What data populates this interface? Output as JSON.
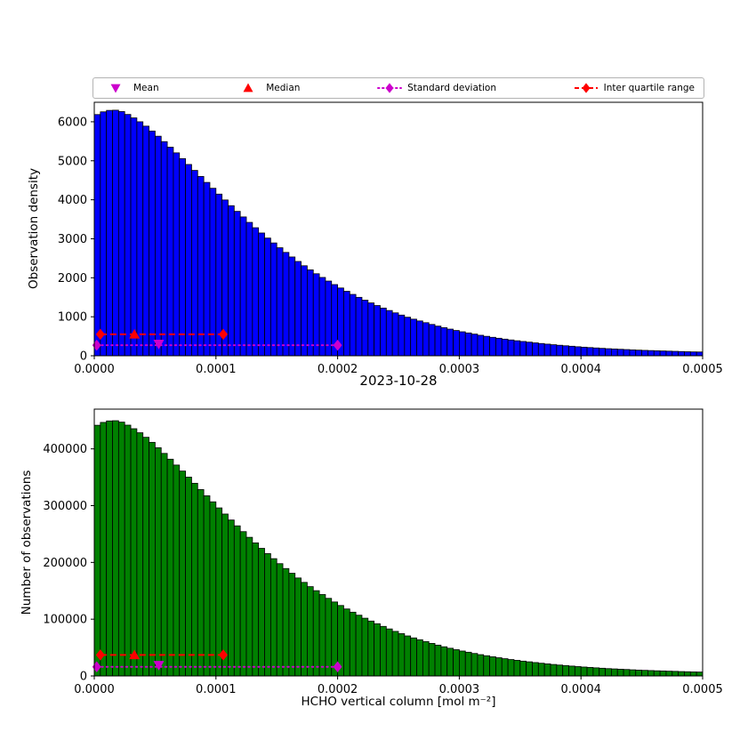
{
  "figure": {
    "title": "2023-10-28",
    "xlabel": "HCHO vertical column [mol m⁻²]",
    "background": "#ffffff"
  },
  "colors": {
    "blue": "#0000ff",
    "green": "#008000",
    "red": "#ff0000",
    "magenta": "#cc00cc",
    "axis": "#000000"
  },
  "legend": {
    "items": [
      {
        "label": "Mean",
        "marker": "triangle-down",
        "color": "#cc00cc",
        "linestyle": "none"
      },
      {
        "label": "Median",
        "marker": "triangle-up",
        "color": "#ff0000",
        "linestyle": "none"
      },
      {
        "label": "Standard deviation",
        "marker": "diamond",
        "color": "#cc00cc",
        "linestyle": "dotted"
      },
      {
        "label": "Inter quartile range",
        "marker": "diamond",
        "color": "#ff0000",
        "linestyle": "dashed"
      }
    ]
  },
  "chart_data": [
    {
      "type": "bar",
      "name": "observation-density-histogram",
      "ylabel": "Observation density",
      "bar_color": "#0000ff",
      "xlim": [
        0,
        0.0005
      ],
      "ylim": [
        0,
        6500
      ],
      "xticks": [
        0,
        0.0001,
        0.0002,
        0.0003,
        0.0004,
        0.0005
      ],
      "xtick_labels": [
        "0.0000",
        "0.0001",
        "0.0002",
        "0.0003",
        "0.0004",
        "0.0005"
      ],
      "yticks": [
        0,
        1000,
        2000,
        3000,
        4000,
        5000,
        6000
      ],
      "ytick_labels": [
        "0",
        "1000",
        "2000",
        "3000",
        "4000",
        "5000",
        "6000"
      ],
      "bin_start": 0,
      "bin_width": 5e-06,
      "values": [
        6185,
        6255,
        6292,
        6297,
        6262,
        6188,
        6100,
        6000,
        5888,
        5763,
        5630,
        5490,
        5348,
        5203,
        5055,
        4905,
        4753,
        4598,
        4445,
        4295,
        4145,
        3995,
        3848,
        3703,
        3560,
        3420,
        3283,
        3148,
        3018,
        2893,
        2770,
        2650,
        2533,
        2418,
        2308,
        2203,
        2103,
        2008,
        1915,
        1825,
        1738,
        1653,
        1573,
        1498,
        1425,
        1355,
        1288,
        1223,
        1160,
        1100,
        1043,
        988,
        938,
        893,
        848,
        803,
        760,
        720,
        683,
        648,
        615,
        585,
        555,
        525,
        498,
        473,
        449,
        426,
        405,
        385,
        366,
        349,
        331,
        314,
        298,
        283,
        269,
        256,
        244,
        231,
        220,
        210,
        200,
        190,
        181,
        174,
        166,
        159,
        151,
        144,
        138,
        133,
        128,
        123,
        118,
        113,
        108,
        103,
        99,
        97
      ],
      "markers": {
        "mean": {
          "x": 5.3e-05,
          "y": 300
        },
        "median": {
          "x": 3.3e-05,
          "y": 550
        },
        "std": {
          "x1": 2e-06,
          "x2": 0.0002,
          "y": 270
        },
        "iqr": {
          "x1": 5e-06,
          "x2": 0.000106,
          "y": 550
        }
      }
    },
    {
      "type": "bar",
      "name": "number-of-observations-histogram",
      "ylabel": "Number of observations",
      "bar_color": "#008000",
      "xlim": [
        0,
        0.0005
      ],
      "ylim": [
        0,
        470000
      ],
      "xticks": [
        0,
        0.0001,
        0.0002,
        0.0003,
        0.0004,
        0.0005
      ],
      "xtick_labels": [
        "0.0000",
        "0.0001",
        "0.0002",
        "0.0003",
        "0.0004",
        "0.0005"
      ],
      "yticks": [
        0,
        100000,
        200000,
        300000,
        400000
      ],
      "ytick_labels": [
        "0",
        "100000",
        "200000",
        "300000",
        "400000"
      ],
      "bin_start": 0,
      "bin_width": 5e-06,
      "values": [
        441600,
        446600,
        449200,
        449600,
        447100,
        441800,
        435500,
        428400,
        420400,
        411500,
        402000,
        392000,
        381800,
        371500,
        360900,
        350200,
        339400,
        328300,
        317400,
        306700,
        296000,
        285200,
        274700,
        264400,
        254200,
        244200,
        234400,
        224800,
        215500,
        206600,
        197800,
        189200,
        180900,
        172600,
        164800,
        157300,
        150200,
        143400,
        136700,
        130300,
        124100,
        118000,
        112300,
        107000,
        101700,
        96700,
        92000,
        87300,
        82800,
        78500,
        74500,
        70500,
        67000,
        63800,
        60500,
        57300,
        54300,
        51400,
        48800,
        46300,
        43900,
        41800,
        39600,
        37500,
        35600,
        33800,
        32100,
        30400,
        28900,
        27500,
        26100,
        24900,
        23600,
        22400,
        21300,
        20200,
        19200,
        18300,
        17400,
        16500,
        15700,
        15000,
        14300,
        13600,
        12900,
        12400,
        11900,
        11400,
        10800,
        10300,
        9900,
        9500,
        9100,
        8800,
        8400,
        8100,
        7700,
        7400,
        7100,
        6900
      ],
      "markers": {
        "mean": {
          "x": 5.3e-05,
          "y": 19000
        },
        "median": {
          "x": 3.3e-05,
          "y": 37000
        },
        "std": {
          "x1": 2e-06,
          "x2": 0.0002,
          "y": 16000
        },
        "iqr": {
          "x1": 5e-06,
          "x2": 0.000106,
          "y": 37000
        }
      }
    }
  ]
}
